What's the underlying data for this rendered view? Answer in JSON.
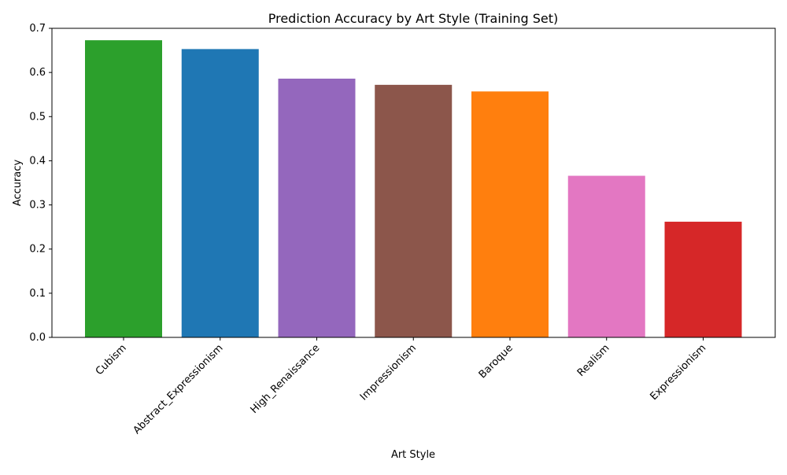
{
  "chart_data": {
    "type": "bar",
    "title": "Prediction Accuracy by Art Style (Training Set)",
    "xlabel": "Art Style",
    "ylabel": "Accuracy",
    "ylim": [
      0,
      0.7
    ],
    "yticks": [
      "0.0",
      "0.1",
      "0.2",
      "0.3",
      "0.4",
      "0.5",
      "0.6",
      "0.7"
    ],
    "grid": false,
    "legend": "none",
    "categories": [
      "Cubism",
      "Abstract_Expressionism",
      "High_Renaissance",
      "Impressionism",
      "Baroque",
      "Realism",
      "Expressionism"
    ],
    "values": [
      0.673,
      0.653,
      0.586,
      0.572,
      0.557,
      0.366,
      0.262
    ],
    "colors": [
      "#2ca02c",
      "#1f77b4",
      "#9467bd",
      "#8c564b",
      "#ff7f0e",
      "#e377c2",
      "#d62728"
    ]
  }
}
